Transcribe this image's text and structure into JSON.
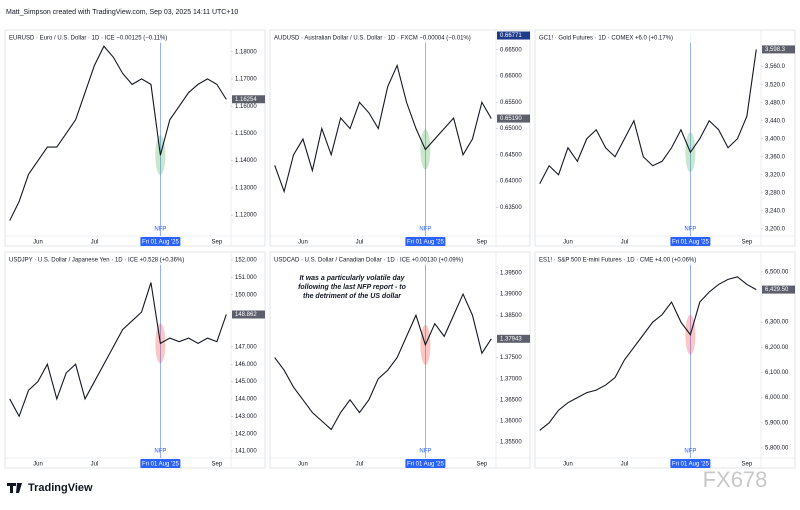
{
  "header": {
    "credit": "Matt_Simpson created with TradingView.com, Sep 03, 2025 14:11 UTC+10"
  },
  "footer": {
    "logo": "TradingView",
    "watermark": "FX678"
  },
  "chart_data": [
    {
      "type": "line",
      "title": "EURUSD · Euro / U.S. Dollar · 1D · ICE  −0.00125 (−0.11%)",
      "color": "#131722",
      "categories": [
        null,
        null,
        null,
        "Jun",
        null,
        null,
        null,
        null,
        null,
        "Jul",
        null,
        null,
        null,
        null,
        null,
        null,
        "Fri 01 Aug '25",
        null,
        null,
        null,
        null,
        null,
        "Sep",
        null
      ],
      "values": [
        1.118,
        1.125,
        1.135,
        1.14,
        1.145,
        1.145,
        1.15,
        1.155,
        1.165,
        1.175,
        1.182,
        1.178,
        1.172,
        1.168,
        1.17,
        1.168,
        1.142,
        1.155,
        1.16,
        1.165,
        1.168,
        1.17,
        1.168,
        1.1625
      ],
      "ylim": [
        1.1138,
        1.1865
      ],
      "yticks": [
        {
          "value": 1.12,
          "label": "1.12000"
        },
        {
          "value": 1.13,
          "label": "1.13000"
        },
        {
          "value": 1.14,
          "label": "1.14000"
        },
        {
          "value": 1.15,
          "label": "1.15000"
        },
        {
          "value": 1.16,
          "label": "1.16000"
        },
        {
          "value": 1.17,
          "label": "1.17000"
        },
        {
          "value": 1.18,
          "label": "1.18000"
        }
      ],
      "last": {
        "value": 1.16254,
        "label": "1.16254"
      },
      "highlight_category": 16,
      "event_label": "NFP",
      "event_color": "#4caf50"
    },
    {
      "type": "line",
      "title": "AUDUSD · Australian Dollar / U.S. Dollar · 1D · FXCM  −0.00004 (−0.01%)",
      "color": "#131722",
      "categories": [
        null,
        null,
        null,
        "Jun",
        null,
        null,
        null,
        null,
        null,
        "Jul",
        null,
        null,
        null,
        null,
        null,
        null,
        "Fri 01 Aug '25",
        null,
        null,
        null,
        null,
        null,
        "Sep",
        null
      ],
      "values": [
        0.643,
        0.638,
        0.645,
        0.648,
        0.642,
        0.65,
        0.645,
        0.652,
        0.65,
        0.655,
        0.653,
        0.65,
        0.658,
        0.662,
        0.655,
        0.65,
        0.646,
        0.648,
        0.65,
        0.652,
        0.645,
        0.648,
        0.655,
        0.6519
      ],
      "ylim": [
        0.6303,
        0.668
      ],
      "yticks": [
        {
          "value": 0.635,
          "label": "0.63500"
        },
        {
          "value": 0.64,
          "label": "0.64000"
        },
        {
          "value": 0.645,
          "label": "0.64500"
        },
        {
          "value": 0.65,
          "label": "0.65000"
        },
        {
          "value": 0.655,
          "label": "0.65500"
        },
        {
          "value": 0.66,
          "label": "0.66000"
        },
        {
          "value": 0.665,
          "label": "0.66500"
        }
      ],
      "last": {
        "value": 0.6519,
        "label": "0.65190"
      },
      "high": {
        "value": 0.66771,
        "label": "0.66771"
      },
      "highlight_category": 16,
      "event_label": "NFP",
      "event_color": "#4caf50"
    },
    {
      "type": "line",
      "title": "GC1! · Gold Futures · 1D · COMEX  +6.0 (+0.17%)",
      "color": "#131722",
      "categories": [
        null,
        null,
        null,
        "Jun",
        null,
        null,
        null,
        null,
        null,
        "Jul",
        null,
        null,
        null,
        null,
        null,
        null,
        "Fri 01 Aug '25",
        null,
        null,
        null,
        null,
        null,
        "Sep",
        null
      ],
      "values": [
        3300,
        3340,
        3320,
        3380,
        3350,
        3400,
        3420,
        3380,
        3360,
        3400,
        3440,
        3360,
        3340,
        3350,
        3380,
        3420,
        3370,
        3400,
        3440,
        3420,
        3380,
        3400,
        3450,
        3598.3
      ],
      "ylim": [
        3193,
        3632.5
      ],
      "yticks": [
        {
          "value": 3200,
          "label": "3,200.0"
        },
        {
          "value": 3240,
          "label": "3,240.0"
        },
        {
          "value": 3280,
          "label": "3,280.0"
        },
        {
          "value": 3320,
          "label": "3,320.0"
        },
        {
          "value": 3360,
          "label": "3,360.0"
        },
        {
          "value": 3400,
          "label": "3,400.0"
        },
        {
          "value": 3440,
          "label": "3,440.0"
        },
        {
          "value": 3480,
          "label": "3,480.0"
        },
        {
          "value": 3520,
          "label": "3,520.0"
        },
        {
          "value": 3560,
          "label": "3,560.0"
        }
      ],
      "last": {
        "value": 3598.3,
        "label": "3,598.3"
      },
      "highlight_category": 16,
      "event_label": "NFP",
      "event_color": "#4caf50"
    },
    {
      "type": "line",
      "title": "USDJPY · U.S. Dollar / Japanese Yen · 1D · ICE  +0.528 (+0.36%)",
      "color": "#131722",
      "categories": [
        null,
        null,
        null,
        "Jun",
        null,
        null,
        null,
        null,
        null,
        "Jul",
        null,
        null,
        null,
        null,
        null,
        null,
        "Fri 01 Aug '25",
        null,
        null,
        null,
        null,
        null,
        "Sep",
        null
      ],
      "values": [
        144,
        143,
        144.5,
        145,
        146,
        144,
        145.5,
        146,
        144,
        145,
        146,
        147,
        148,
        148.5,
        149,
        150.7,
        147.2,
        147.5,
        147.3,
        147.5,
        147.2,
        147.5,
        147.3,
        148.862
      ],
      "ylim": [
        140.83,
        152.23
      ],
      "yticks": [
        {
          "value": 141,
          "label": "141.000"
        },
        {
          "value": 142,
          "label": "142.000"
        },
        {
          "value": 143,
          "label": "143.000"
        },
        {
          "value": 144,
          "label": "144.000"
        },
        {
          "value": 145,
          "label": "145.000"
        },
        {
          "value": 146,
          "label": "146.000"
        },
        {
          "value": 147,
          "label": "147.000"
        },
        {
          "value": 150,
          "label": "150.000"
        },
        {
          "value": 151,
          "label": "151.000"
        },
        {
          "value": 152,
          "label": "152.000"
        }
      ],
      "last": {
        "value": 148.862,
        "label": "148.862"
      },
      "highlight_category": 16,
      "event_label": "NFP",
      "event_color": "#f44336"
    },
    {
      "type": "line",
      "title": "USDCAD · U.S. Dollar / Canadian Dollar · 1D · ICE  +0.00130 (+0.09%)",
      "color": "#131722",
      "categories": [
        null,
        null,
        null,
        "Jun",
        null,
        null,
        null,
        null,
        null,
        "Jul",
        null,
        null,
        null,
        null,
        null,
        null,
        "Fri 01 Aug '25",
        null,
        null,
        null,
        null,
        null,
        "Sep",
        null
      ],
      "values": [
        1.375,
        1.372,
        1.368,
        1.365,
        1.362,
        1.36,
        1.358,
        1.362,
        1.365,
        1.362,
        1.365,
        1.37,
        1.372,
        1.375,
        1.38,
        1.385,
        1.378,
        1.383,
        1.38,
        1.385,
        1.39,
        1.385,
        1.376,
        1.37943
      ],
      "ylim": [
        1.3522,
        1.399
      ],
      "yticks": [
        {
          "value": 1.355,
          "label": "1.35500"
        },
        {
          "value": 1.36,
          "label": "1.36000"
        },
        {
          "value": 1.365,
          "label": "1.36500"
        },
        {
          "value": 1.37,
          "label": "1.37000"
        },
        {
          "value": 1.375,
          "label": "1.37500"
        },
        {
          "value": 1.385,
          "label": "1.38500"
        },
        {
          "value": 1.39,
          "label": "1.39000"
        },
        {
          "value": 1.395,
          "label": "1.39500"
        }
      ],
      "last": {
        "value": 1.37943,
        "label": "1.37943"
      },
      "highlight_category": 16,
      "event_label": "NFP",
      "event_color": "#f44336",
      "annotation": [
        "It was a particularly volatile day",
        "following the last NFP report - to",
        "the detriment of the US dollar"
      ]
    },
    {
      "type": "line",
      "title": "ES1! · S&P 500 E-mini Futures · 1D · CME  +4.00 (+0.06%)",
      "color": "#131722",
      "categories": [
        null,
        null,
        null,
        "Jun",
        null,
        null,
        null,
        null,
        null,
        "Jul",
        null,
        null,
        null,
        null,
        null,
        null,
        "Fri 01 Aug '25",
        null,
        null,
        null,
        null,
        null,
        "Sep",
        null
      ],
      "values": [
        5870,
        5900,
        5950,
        5980,
        6000,
        6020,
        6030,
        6050,
        6080,
        6150,
        6200,
        6250,
        6300,
        6330,
        6380,
        6300,
        6250,
        6380,
        6420,
        6450,
        6470,
        6480,
        6450,
        6429.5
      ],
      "ylim": [
        5776,
        6563
      ],
      "yticks": [
        {
          "value": 5800,
          "label": "5,800.00"
        },
        {
          "value": 5900,
          "label": "5,900.00"
        },
        {
          "value": 6000,
          "label": "6,000.00"
        },
        {
          "value": 6100,
          "label": "6,100.00"
        },
        {
          "value": 6200,
          "label": "6,200.00"
        },
        {
          "value": 6300,
          "label": "6,300.00"
        },
        {
          "value": 6500,
          "label": "6,500.00"
        }
      ],
      "last": {
        "value": 6429.5,
        "label": "6,429.50"
      },
      "highlight_category": 16,
      "event_label": "NFP",
      "event_color": "#f44336"
    }
  ]
}
